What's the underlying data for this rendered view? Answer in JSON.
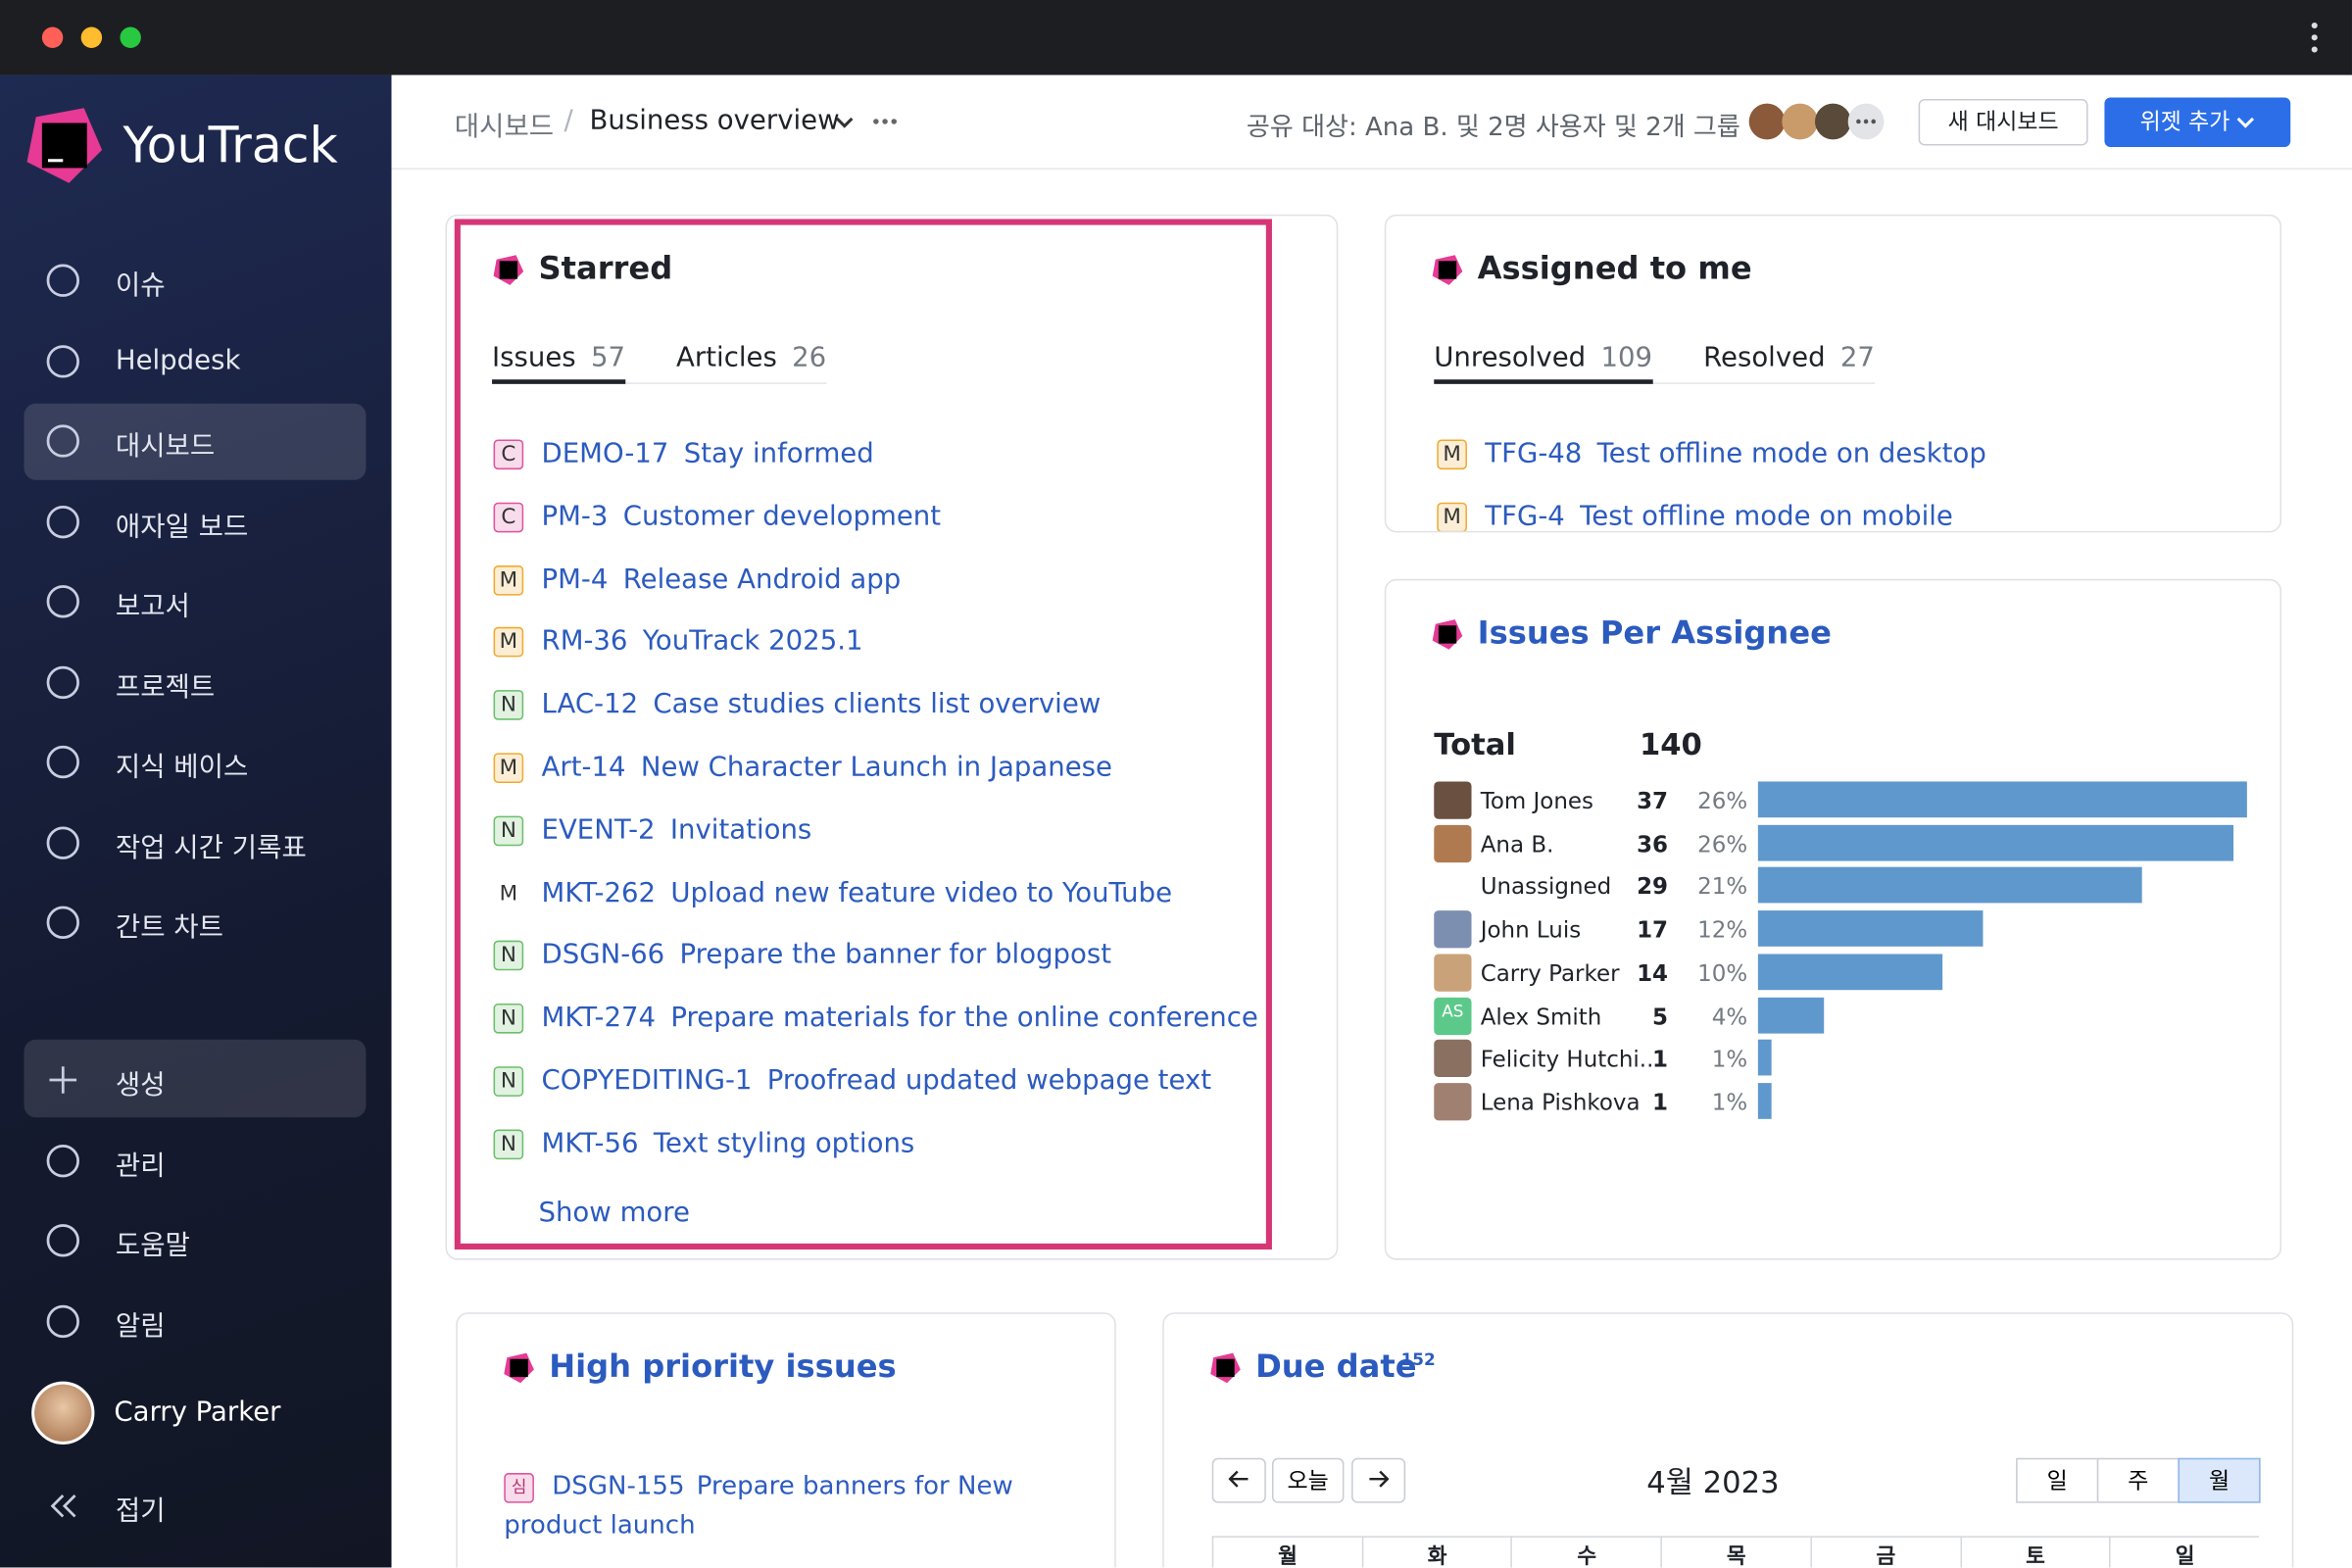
{
  "sidebar": {
    "brand": "YouTrack",
    "nav": [
      "이슈",
      "Helpdesk",
      "대시보드",
      "애자일 보드",
      "보고서",
      "프로젝트",
      "지식 베이스",
      "작업 시간 기록표",
      "간트 차트"
    ],
    "active": 2,
    "bottom": [
      "생성",
      "관리",
      "도움말",
      "알림"
    ],
    "user": "Carry Parker",
    "collapse": "접기"
  },
  "header": {
    "breadcrumb": [
      "대시보드",
      "Business overview"
    ],
    "shared": "공유 대상: Ana B. 및 2명 사용자 및 2개 그룹",
    "buttons": [
      "새 대시보드",
      "위젯 추가"
    ]
  },
  "starred": {
    "title": "Starred",
    "tabs": [
      {
        "label": "Issues",
        "count": 57
      },
      {
        "label": "Articles",
        "count": 26
      }
    ],
    "issues": [
      {
        "badge": "C",
        "color": "#e0529c",
        "id": "DEMO-17",
        "summary": "Stay informed"
      },
      {
        "badge": "C",
        "color": "#e0529c",
        "id": "PM-3",
        "summary": "Customer development"
      },
      {
        "badge": "M",
        "color": "#f0a92e",
        "id": "PM-4",
        "summary": "Release Android app"
      },
      {
        "badge": "M",
        "color": "#f0a92e",
        "id": "RM-36",
        "summary": "YouTrack 2025.1"
      },
      {
        "badge": "N",
        "color": "#6bbf6b",
        "id": "LAC-12",
        "summary": "Case studies clients list overview"
      },
      {
        "badge": "M",
        "color": "#f0a92e",
        "id": "Art-14",
        "summary": "New Character Launch in Japanese"
      },
      {
        "badge": "N",
        "color": "#6bbf6b",
        "id": "EVENT-2",
        "summary": "Invitations"
      },
      {
        "badge": "M",
        "color": "#ffffff",
        "id": "MKT-262",
        "summary": "Upload new feature video to YouTube"
      },
      {
        "badge": "N",
        "color": "#6bbf6b",
        "id": "DSGN-66",
        "summary": "Prepare the banner for blogpost"
      },
      {
        "badge": "N",
        "color": "#6bbf6b",
        "id": "MKT-274",
        "summary": "Prepare materials for the online conference"
      },
      {
        "badge": "N",
        "color": "#6bbf6b",
        "id": "COPYEDITING-1",
        "summary": "Proofread updated webpage text"
      },
      {
        "badge": "N",
        "color": "#6bbf6b",
        "id": "MKT-56",
        "summary": "Text styling options"
      }
    ],
    "more": "Show more"
  },
  "assigned": {
    "title": "Assigned to me",
    "tabs": [
      {
        "label": "Unresolved",
        "count": 109
      },
      {
        "label": "Resolved",
        "count": 27
      }
    ],
    "issues": [
      {
        "badge": "M",
        "color": "#f0a92e",
        "id": "TFG-48",
        "summary": "Test offline mode on desktop"
      },
      {
        "badge": "M",
        "color": "#f0a92e",
        "id": "TFG-4",
        "summary": "Test offline mode on mobile"
      }
    ]
  },
  "per_assignee": {
    "title": "Issues Per Assignee",
    "total_label": "Total",
    "total": 140,
    "bar_color": "#5f98cd",
    "rows": [
      {
        "name": "Tom Jones",
        "count": 37,
        "percent": "26%"
      },
      {
        "name": "Ana B.",
        "count": 36,
        "percent": "26%"
      },
      {
        "name": "Unassigned",
        "count": 29,
        "percent": "21%"
      },
      {
        "name": "John Luis",
        "count": 17,
        "percent": "12%"
      },
      {
        "name": "Carry Parker",
        "count": 14,
        "percent": "10%"
      },
      {
        "name": "Alex Smith",
        "initials": "AS",
        "count": 5,
        "percent": "4%"
      },
      {
        "name": "Felicity Hutchi...",
        "count": 1,
        "percent": "1%"
      },
      {
        "name": "Lena Pishkova",
        "count": 1,
        "percent": "1%"
      }
    ]
  },
  "high_priority": {
    "title": "High priority issues",
    "issues": [
      {
        "badge": "심",
        "color": "#e0529c",
        "id": "DSGN-155",
        "summary": "Prepare banners for New product launch"
      }
    ]
  },
  "due_date": {
    "title": "Due date",
    "count": 152,
    "today": "오늘",
    "month": "4월 2023",
    "views": [
      "일",
      "주",
      "월"
    ],
    "active_view": 2,
    "weekdays": [
      "월",
      "화",
      "수",
      "목",
      "금",
      "토",
      "일"
    ]
  }
}
